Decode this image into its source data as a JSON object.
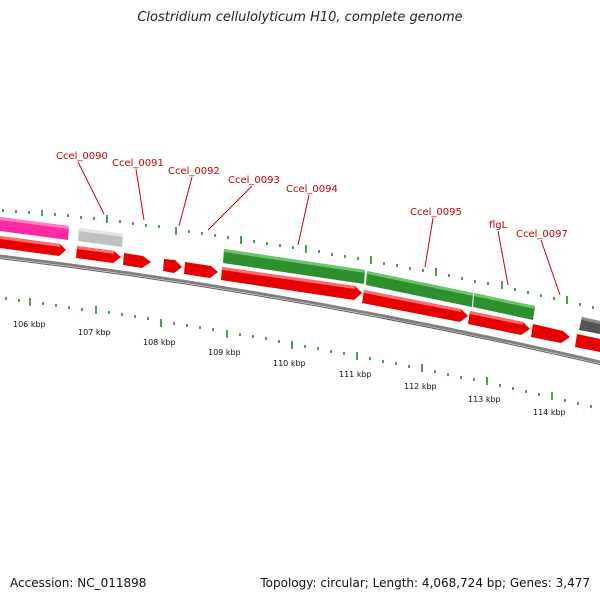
{
  "title": "Clostridium cellulolyticum H10, complete genome",
  "footer": {
    "accession": "Accession: NC_011898",
    "summary": "Topology: circular; Length: 4,068,724 bp; Genes: 3,477"
  },
  "colors": {
    "background": "#ffffff",
    "forward_gene": "#e60000",
    "other_gene_green": "#2e9a2e",
    "magenta_gene": "#ff2aa0",
    "gray_gene": "#c0c0c0",
    "dark_gene": "#555555",
    "backbone": "#808080",
    "tick": "#1f8a1f",
    "label": "#cc0000"
  },
  "gene_labels": [
    {
      "id": "ccel-0090",
      "text": "Ccel_0090"
    },
    {
      "id": "ccel-0091",
      "text": "Ccel_0091"
    },
    {
      "id": "ccel-0092",
      "text": "Ccel_0092"
    },
    {
      "id": "ccel-0093",
      "text": "Ccel_0093"
    },
    {
      "id": "ccel-0094",
      "text": "Ccel_0094"
    },
    {
      "id": "ccel-0095",
      "text": "Ccel_0095"
    },
    {
      "id": "flgl",
      "text": "flgL"
    },
    {
      "id": "ccel-0097",
      "text": "Ccel_0097"
    }
  ],
  "kbp_labels": [
    "106 kbp",
    "107 kbp",
    "108 kbp",
    "109 kbp",
    "110 kbp",
    "111 kbp",
    "112 kbp",
    "113 kbp",
    "114 kbp"
  ]
}
